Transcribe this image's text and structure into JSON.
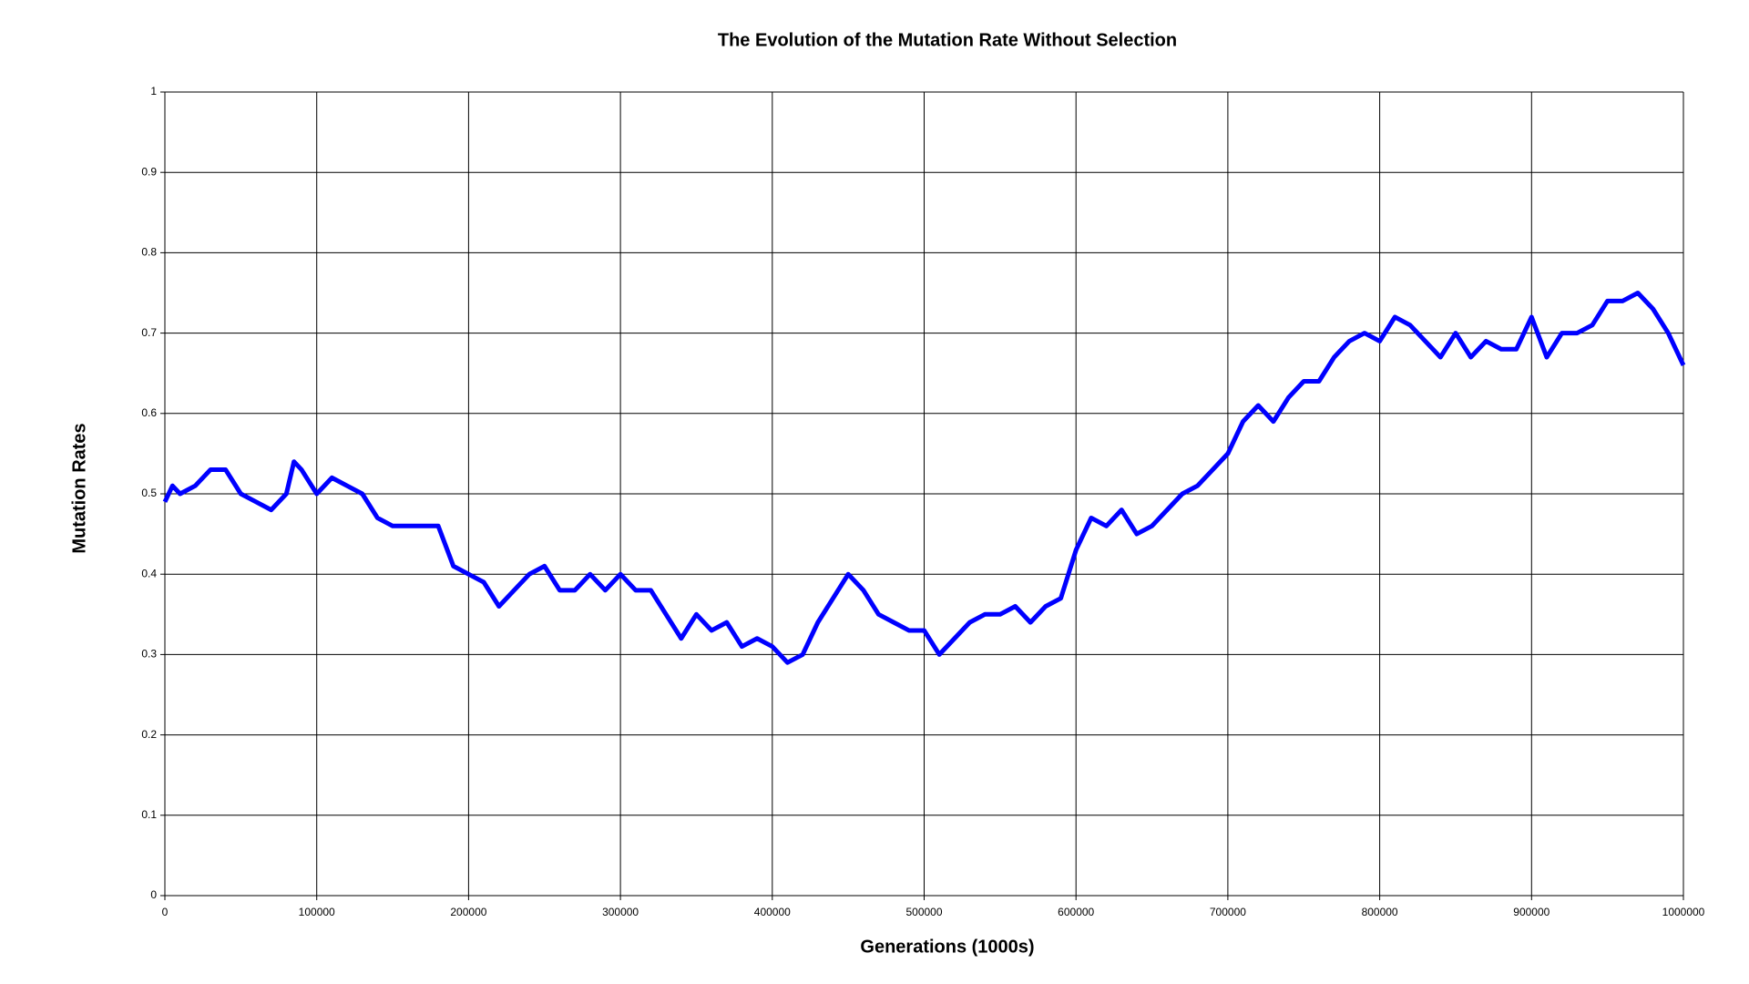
{
  "chart_data": {
    "type": "line",
    "title": "The Evolution of the Mutation Rate Without Selection",
    "x_label": "Generations (1000s)",
    "y_label": "Mutation Rates",
    "x": [
      0,
      5000,
      10000,
      20000,
      30000,
      40000,
      50000,
      60000,
      70000,
      80000,
      85000,
      90000,
      100000,
      110000,
      120000,
      130000,
      140000,
      150000,
      160000,
      170000,
      180000,
      190000,
      200000,
      210000,
      220000,
      230000,
      240000,
      250000,
      260000,
      270000,
      280000,
      290000,
      300000,
      310000,
      320000,
      330000,
      340000,
      350000,
      360000,
      370000,
      380000,
      390000,
      400000,
      410000,
      420000,
      430000,
      440000,
      450000,
      460000,
      470000,
      480000,
      490000,
      500000,
      510000,
      520000,
      530000,
      540000,
      550000,
      560000,
      570000,
      580000,
      590000,
      600000,
      610000,
      620000,
      630000,
      640000,
      650000,
      660000,
      670000,
      680000,
      690000,
      700000,
      710000,
      720000,
      730000,
      740000,
      750000,
      760000,
      770000,
      780000,
      790000,
      800000,
      810000,
      820000,
      830000,
      840000,
      850000,
      860000,
      870000,
      880000,
      890000,
      900000,
      910000,
      920000,
      930000,
      940000,
      950000,
      960000,
      970000,
      980000,
      990000,
      1000000
    ],
    "series": [
      {
        "name": "Mutation Rate",
        "color": "#0000ff",
        "values": [
          0.49,
          0.51,
          0.5,
          0.51,
          0.53,
          0.53,
          0.5,
          0.49,
          0.48,
          0.5,
          0.54,
          0.53,
          0.5,
          0.52,
          0.51,
          0.5,
          0.47,
          0.46,
          0.46,
          0.46,
          0.46,
          0.41,
          0.4,
          0.39,
          0.36,
          0.38,
          0.4,
          0.41,
          0.38,
          0.38,
          0.4,
          0.38,
          0.4,
          0.38,
          0.38,
          0.35,
          0.32,
          0.35,
          0.33,
          0.34,
          0.31,
          0.32,
          0.31,
          0.29,
          0.3,
          0.34,
          0.37,
          0.4,
          0.38,
          0.35,
          0.34,
          0.33,
          0.33,
          0.3,
          0.32,
          0.34,
          0.35,
          0.35,
          0.36,
          0.34,
          0.36,
          0.37,
          0.43,
          0.47,
          0.46,
          0.48,
          0.45,
          0.46,
          0.48,
          0.5,
          0.51,
          0.53,
          0.55,
          0.59,
          0.61,
          0.59,
          0.62,
          0.64,
          0.64,
          0.67,
          0.69,
          0.7,
          0.69,
          0.72,
          0.71,
          0.69,
          0.67,
          0.7,
          0.67,
          0.69,
          0.68,
          0.68,
          0.72,
          0.67,
          0.7,
          0.7,
          0.71,
          0.74,
          0.74,
          0.75,
          0.73,
          0.7,
          0.66
        ]
      }
    ],
    "xlim": [
      0,
      1000000
    ],
    "xticks": [
      0,
      100000,
      200000,
      300000,
      400000,
      500000,
      600000,
      700000,
      800000,
      900000,
      1000000
    ],
    "ylim": [
      0,
      1
    ],
    "yticks": [
      0,
      0.1,
      0.2,
      0.3,
      0.4,
      0.5,
      0.6,
      0.7,
      0.8,
      0.9,
      1
    ],
    "grid": true
  }
}
